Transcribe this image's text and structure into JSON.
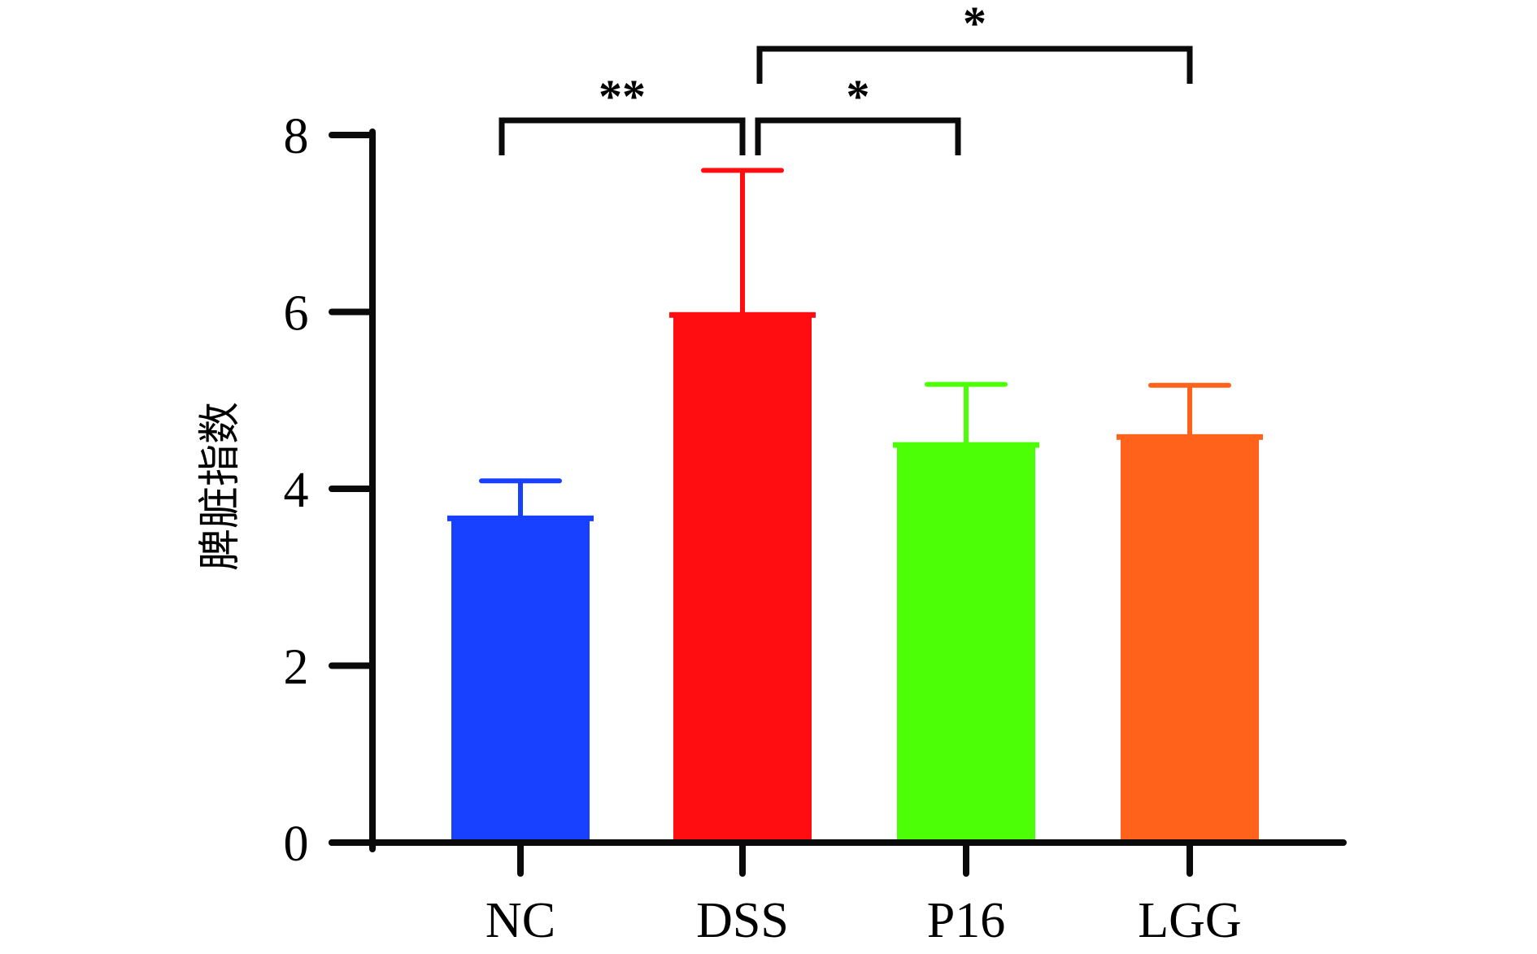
{
  "chart_data": {
    "type": "bar",
    "title": "",
    "xlabel": "",
    "ylabel": "脾脏指数",
    "ylim": [
      0,
      8
    ],
    "yticks": [
      0,
      2,
      4,
      6,
      8
    ],
    "ytick_labels": [
      "0",
      "2",
      "4",
      "6",
      "8"
    ],
    "grid": false,
    "legend": "none",
    "categories": [
      "NC",
      "DSS",
      "P16",
      "LGG"
    ],
    "values": [
      3.67,
      5.97,
      4.5,
      4.59
    ],
    "error_upper": [
      4.09,
      7.6,
      5.18,
      5.17
    ],
    "colors": [
      "#1740FF",
      "#FF0D10",
      "#4CFF07",
      "#FF621A"
    ],
    "significance": [
      {
        "from": "NC",
        "to": "DSS",
        "label": "**"
      },
      {
        "from": "DSS",
        "to": "P16",
        "label": "*"
      },
      {
        "from": "DSS",
        "to": "LGG",
        "label": "*"
      }
    ]
  }
}
